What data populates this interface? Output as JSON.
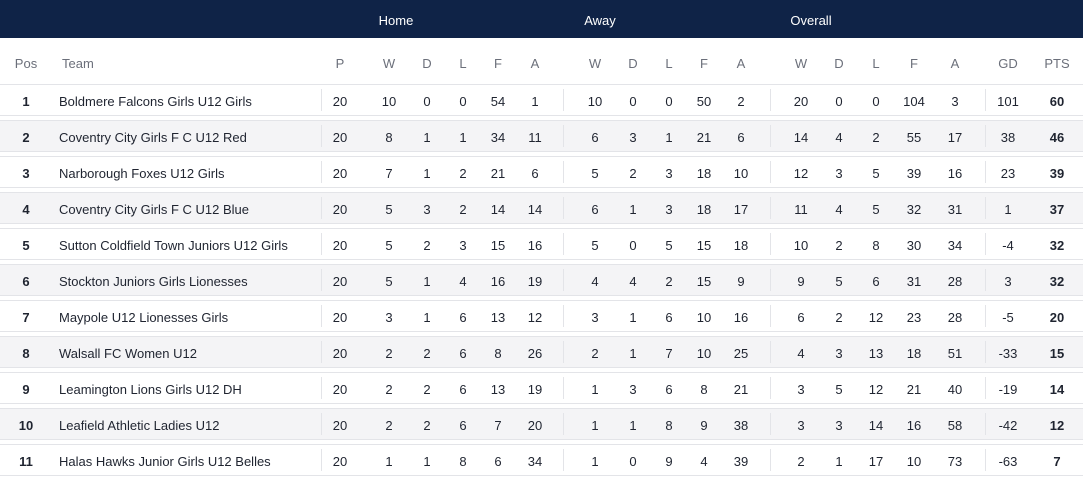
{
  "groups": {
    "home": "Home",
    "away": "Away",
    "overall": "Overall"
  },
  "headers": {
    "pos": "Pos",
    "team": "Team",
    "p": "P",
    "home_w": "W",
    "home_d": "D",
    "home_l": "L",
    "home_f": "F",
    "home_a": "A",
    "away_w": "W",
    "away_d": "D",
    "away_l": "L",
    "away_f": "F",
    "away_a": "A",
    "overall_w": "W",
    "overall_d": "D",
    "overall_l": "L",
    "overall_f": "F",
    "overall_a": "A",
    "gd": "GD",
    "pts": "PTS"
  },
  "rows": [
    {
      "pos": "1",
      "team": "Boldmere Falcons Girls U12 Girls",
      "p": "20",
      "hw": "10",
      "hd": "0",
      "hl": "0",
      "hf": "54",
      "ha": "1",
      "aw": "10",
      "ad": "0",
      "al": "0",
      "af": "50",
      "aa": "2",
      "ow": "20",
      "od": "0",
      "ol": "0",
      "of": "104",
      "oa": "3",
      "gd": "101",
      "pts": "60"
    },
    {
      "pos": "2",
      "team": "Coventry City Girls F C U12 Red",
      "p": "20",
      "hw": "8",
      "hd": "1",
      "hl": "1",
      "hf": "34",
      "ha": "11",
      "aw": "6",
      "ad": "3",
      "al": "1",
      "af": "21",
      "aa": "6",
      "ow": "14",
      "od": "4",
      "ol": "2",
      "of": "55",
      "oa": "17",
      "gd": "38",
      "pts": "46"
    },
    {
      "pos": "3",
      "team": "Narborough Foxes U12 Girls",
      "p": "20",
      "hw": "7",
      "hd": "1",
      "hl": "2",
      "hf": "21",
      "ha": "6",
      "aw": "5",
      "ad": "2",
      "al": "3",
      "af": "18",
      "aa": "10",
      "ow": "12",
      "od": "3",
      "ol": "5",
      "of": "39",
      "oa": "16",
      "gd": "23",
      "pts": "39"
    },
    {
      "pos": "4",
      "team": "Coventry City Girls F C U12 Blue",
      "p": "20",
      "hw": "5",
      "hd": "3",
      "hl": "2",
      "hf": "14",
      "ha": "14",
      "aw": "6",
      "ad": "1",
      "al": "3",
      "af": "18",
      "aa": "17",
      "ow": "11",
      "od": "4",
      "ol": "5",
      "of": "32",
      "oa": "31",
      "gd": "1",
      "pts": "37"
    },
    {
      "pos": "5",
      "team": "Sutton Coldfield Town Juniors U12 Girls",
      "p": "20",
      "hw": "5",
      "hd": "2",
      "hl": "3",
      "hf": "15",
      "ha": "16",
      "aw": "5",
      "ad": "0",
      "al": "5",
      "af": "15",
      "aa": "18",
      "ow": "10",
      "od": "2",
      "ol": "8",
      "of": "30",
      "oa": "34",
      "gd": "-4",
      "pts": "32"
    },
    {
      "pos": "6",
      "team": "Stockton Juniors Girls Lionesses",
      "p": "20",
      "hw": "5",
      "hd": "1",
      "hl": "4",
      "hf": "16",
      "ha": "19",
      "aw": "4",
      "ad": "4",
      "al": "2",
      "af": "15",
      "aa": "9",
      "ow": "9",
      "od": "5",
      "ol": "6",
      "of": "31",
      "oa": "28",
      "gd": "3",
      "pts": "32"
    },
    {
      "pos": "7",
      "team": "Maypole U12 Lionesses Girls",
      "p": "20",
      "hw": "3",
      "hd": "1",
      "hl": "6",
      "hf": "13",
      "ha": "12",
      "aw": "3",
      "ad": "1",
      "al": "6",
      "af": "10",
      "aa": "16",
      "ow": "6",
      "od": "2",
      "ol": "12",
      "of": "23",
      "oa": "28",
      "gd": "-5",
      "pts": "20"
    },
    {
      "pos": "8",
      "team": "Walsall FC Women U12",
      "p": "20",
      "hw": "2",
      "hd": "2",
      "hl": "6",
      "hf": "8",
      "ha": "26",
      "aw": "2",
      "ad": "1",
      "al": "7",
      "af": "10",
      "aa": "25",
      "ow": "4",
      "od": "3",
      "ol": "13",
      "of": "18",
      "oa": "51",
      "gd": "-33",
      "pts": "15"
    },
    {
      "pos": "9",
      "team": "Leamington Lions Girls U12 DH",
      "p": "20",
      "hw": "2",
      "hd": "2",
      "hl": "6",
      "hf": "13",
      "ha": "19",
      "aw": "1",
      "ad": "3",
      "al": "6",
      "af": "8",
      "aa": "21",
      "ow": "3",
      "od": "5",
      "ol": "12",
      "of": "21",
      "oa": "40",
      "gd": "-19",
      "pts": "14"
    },
    {
      "pos": "10",
      "team": "Leafield Athletic Ladies U12",
      "p": "20",
      "hw": "2",
      "hd": "2",
      "hl": "6",
      "hf": "7",
      "ha": "20",
      "aw": "1",
      "ad": "1",
      "al": "8",
      "af": "9",
      "aa": "38",
      "ow": "3",
      "od": "3",
      "ol": "14",
      "of": "16",
      "oa": "58",
      "gd": "-42",
      "pts": "12"
    },
    {
      "pos": "11",
      "team": "Halas Hawks Junior Girls U12 Belles",
      "p": "20",
      "hw": "1",
      "hd": "1",
      "hl": "8",
      "hf": "6",
      "ha": "34",
      "aw": "1",
      "ad": "0",
      "al": "9",
      "af": "4",
      "aa": "39",
      "ow": "2",
      "od": "1",
      "ol": "17",
      "of": "10",
      "oa": "73",
      "gd": "-63",
      "pts": "7"
    }
  ]
}
